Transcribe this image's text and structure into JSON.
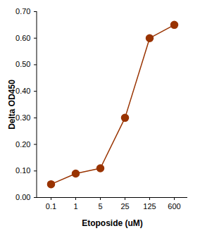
{
  "chart_data": {
    "type": "line",
    "x_label": "Etoposide (uM)",
    "y_label": "Delta OD450",
    "categories": [
      "0.1",
      "1",
      "5",
      "25",
      "125",
      "600"
    ],
    "values": [
      0.05,
      0.09,
      0.11,
      0.3,
      0.6,
      0.65
    ],
    "color": "#993300",
    "marker": "circle",
    "line_style": "solid",
    "ylim": [
      0,
      0.7
    ],
    "yticks": [
      0,
      0.1,
      0.2,
      0.3,
      0.4,
      0.5,
      0.6,
      0.7
    ],
    "grid": false
  }
}
